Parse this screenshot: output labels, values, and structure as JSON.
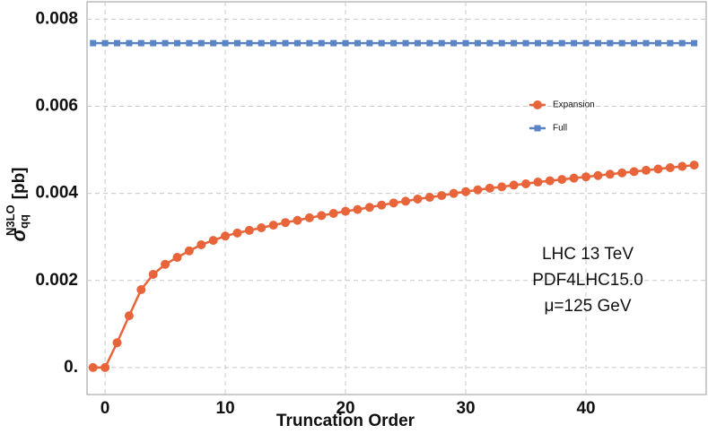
{
  "chart_data": {
    "type": "line",
    "xlabel": "Truncation Order",
    "ylabel": {
      "symbol": "σ",
      "sub": "qq",
      "sup": "N3LO",
      "unit": "[pb]"
    },
    "annotations": [
      "LHC 13 TeV",
      "PDF4LHC15.0",
      "μ=125 GeV"
    ],
    "x": [
      -1,
      0,
      1,
      2,
      3,
      4,
      5,
      6,
      7,
      8,
      9,
      10,
      11,
      12,
      13,
      14,
      15,
      16,
      17,
      18,
      19,
      20,
      21,
      22,
      23,
      24,
      25,
      26,
      27,
      28,
      29,
      30,
      31,
      32,
      33,
      34,
      35,
      36,
      37,
      38,
      39,
      40,
      41,
      42,
      43,
      44,
      45,
      46,
      47,
      48,
      49
    ],
    "series": [
      {
        "name": "Expansion",
        "color": "#e8643a",
        "marker": "circle",
        "values": [
          0,
          0,
          0.00057,
          0.00119,
          0.00179,
          0.00214,
          0.00237,
          0.00253,
          0.00268,
          0.00282,
          0.00292,
          0.00302,
          0.00309,
          0.00315,
          0.00321,
          0.00327,
          0.00333,
          0.00338,
          0.00344,
          0.00349,
          0.00354,
          0.00359,
          0.00363,
          0.00368,
          0.00373,
          0.00378,
          0.00382,
          0.00387,
          0.00391,
          0.00395,
          0.004,
          0.00404,
          0.00408,
          0.00412,
          0.00415,
          0.00419,
          0.00422,
          0.00426,
          0.00429,
          0.00432,
          0.00435,
          0.00438,
          0.00441,
          0.00444,
          0.00447,
          0.0045,
          0.00453,
          0.00456,
          0.00459,
          0.00462,
          0.00465
        ]
      },
      {
        "name": "Full",
        "color": "#5b84c4",
        "marker": "square",
        "values": [
          0.00745,
          0.00745,
          0.00745,
          0.00745,
          0.00745,
          0.00745,
          0.00745,
          0.00745,
          0.00745,
          0.00745,
          0.00745,
          0.00745,
          0.00745,
          0.00745,
          0.00745,
          0.00745,
          0.00745,
          0.00745,
          0.00745,
          0.00745,
          0.00745,
          0.00745,
          0.00745,
          0.00745,
          0.00745,
          0.00745,
          0.00745,
          0.00745,
          0.00745,
          0.00745,
          0.00745,
          0.00745,
          0.00745,
          0.00745,
          0.00745,
          0.00745,
          0.00745,
          0.00745,
          0.00745,
          0.00745,
          0.00745,
          0.00745,
          0.00745,
          0.00745,
          0.00745,
          0.00745,
          0.00745,
          0.00745,
          0.00745,
          0.00745,
          0.00745
        ]
      }
    ],
    "xlim": [
      -1.5,
      50
    ],
    "xticks": [
      0,
      10,
      20,
      30,
      40
    ],
    "ylim": [
      -0.00062,
      0.0084
    ],
    "yticks": [
      {
        "value": 0,
        "label": "0."
      },
      0.002,
      0.004,
      0.006,
      0.008
    ],
    "grid": true,
    "legend": "right"
  }
}
